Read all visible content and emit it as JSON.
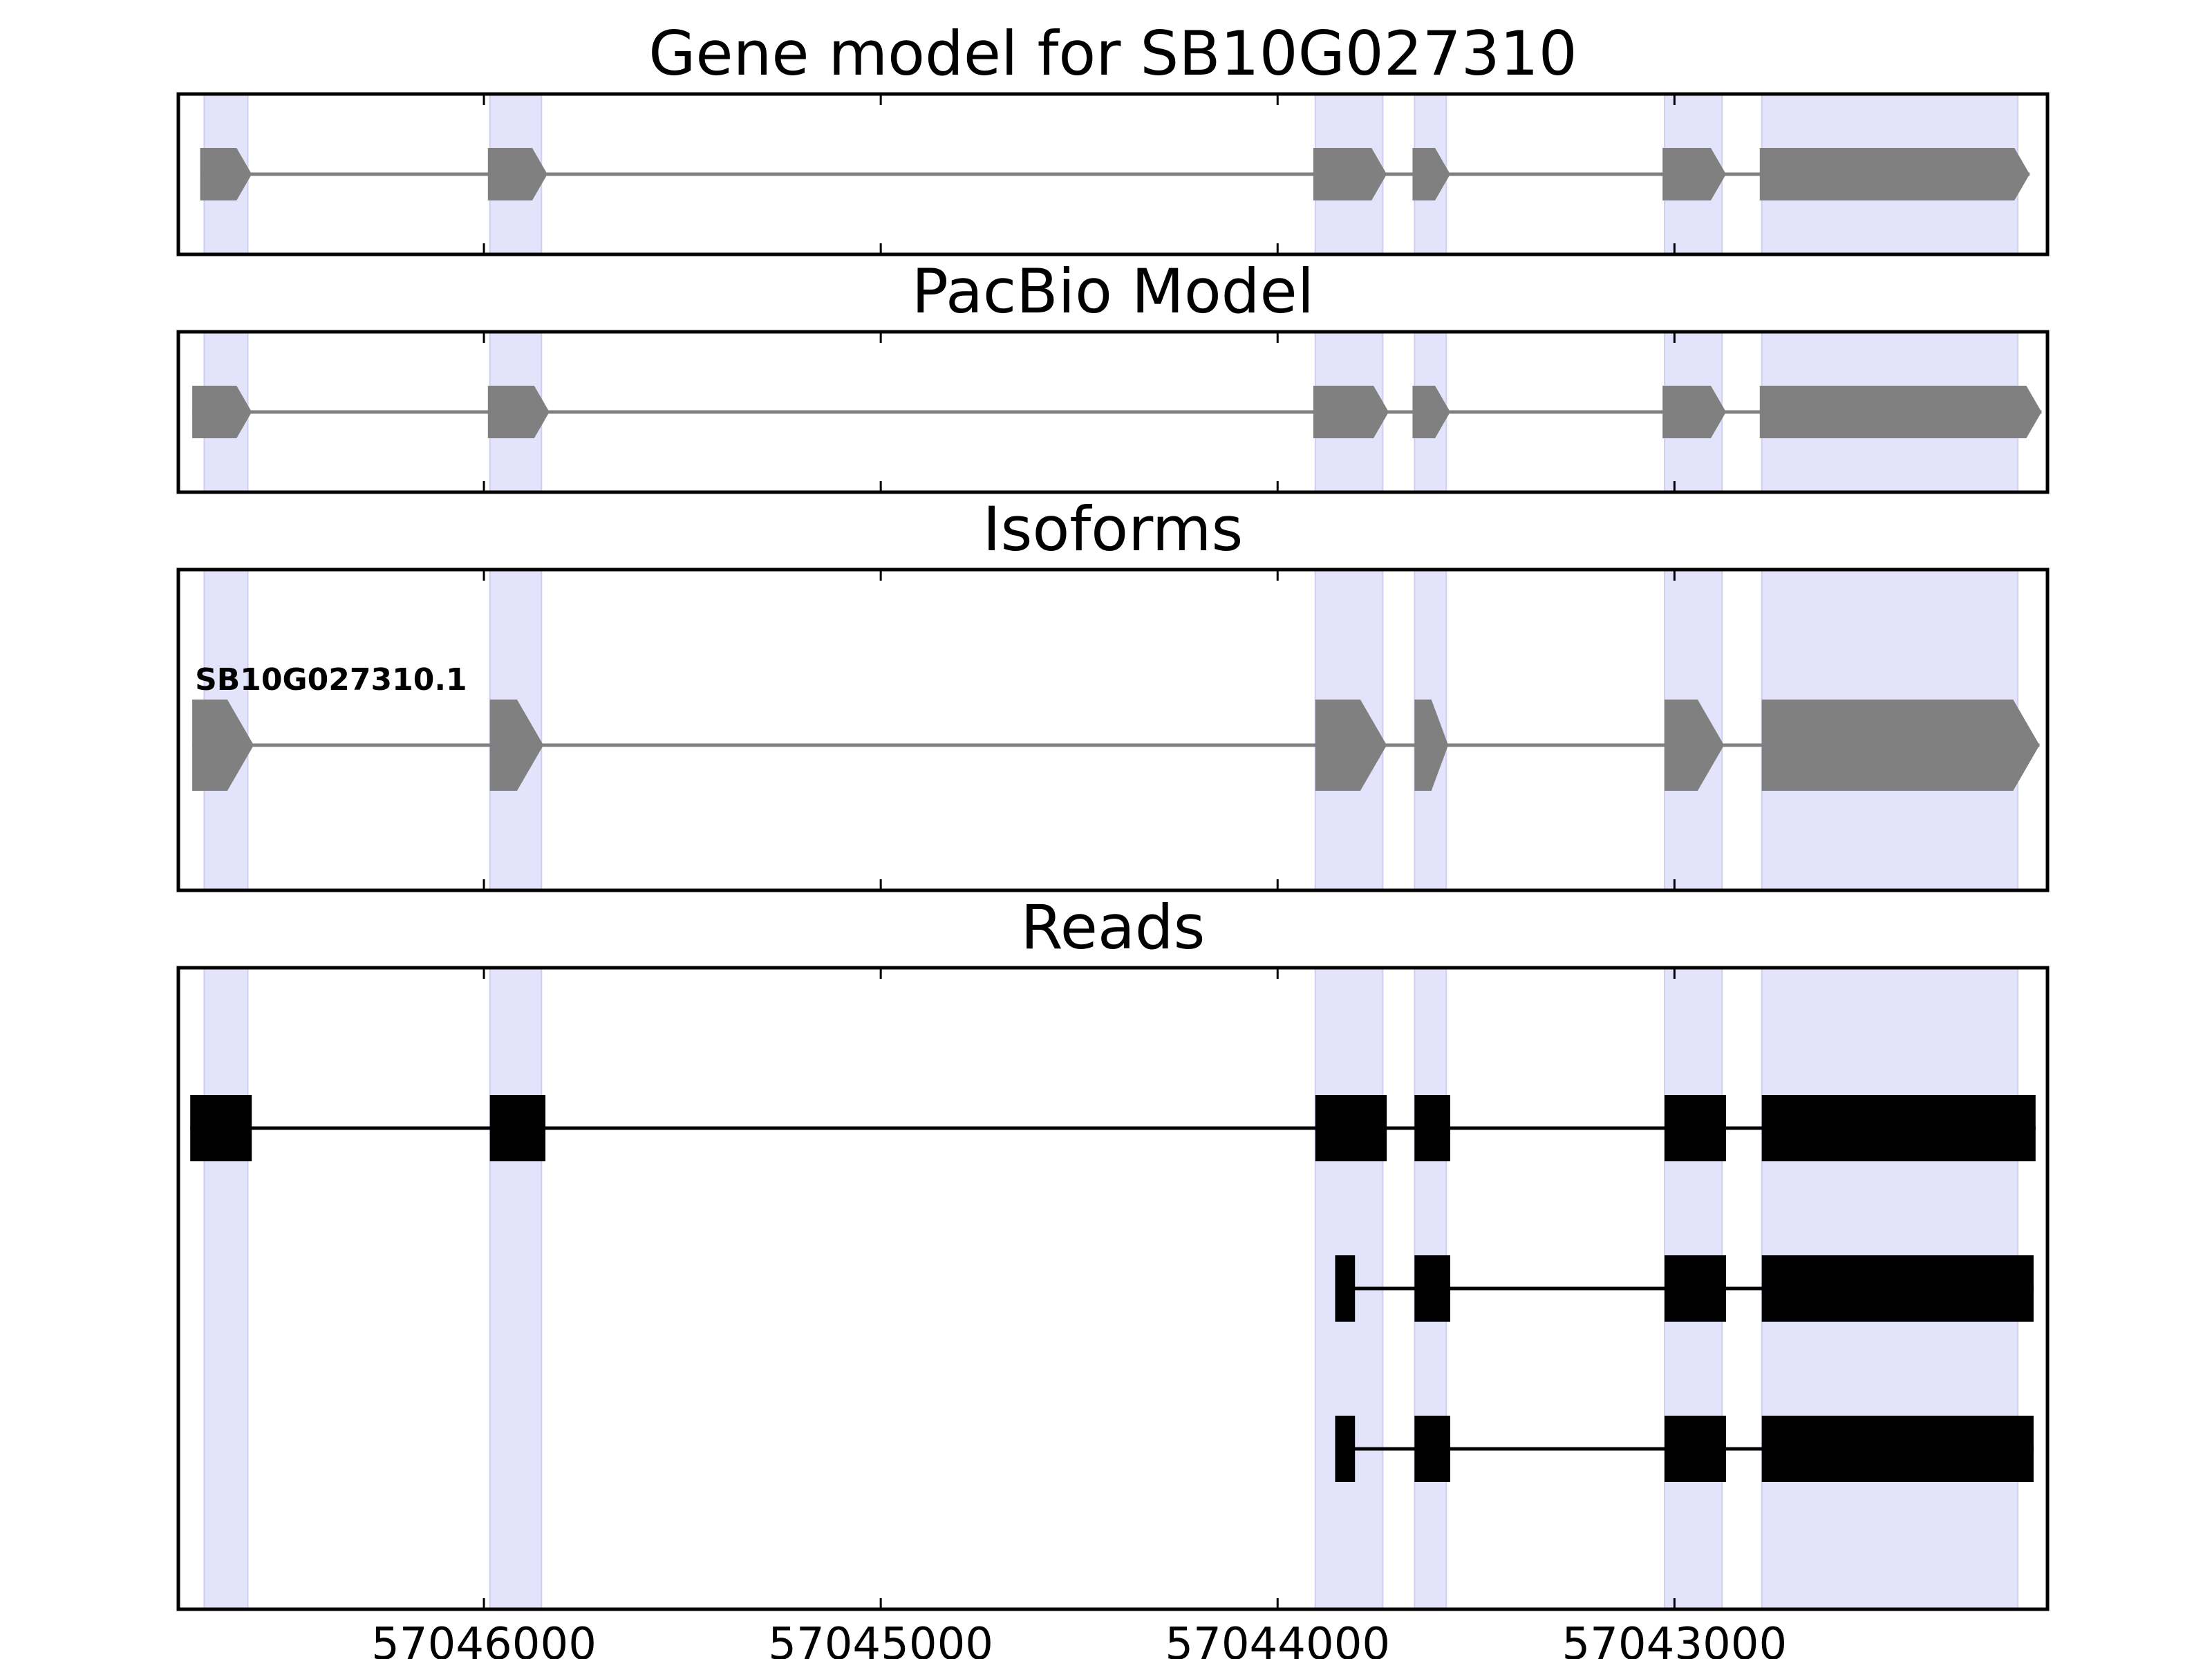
{
  "chart_data": {
    "type": "gene-model",
    "colors": {
      "exon_model": "#808080",
      "intron_model": "#808080",
      "read": "#000000",
      "exon_highlight": "#e3e3fb",
      "highlight_edge": "#cfcff0",
      "frame": "#000000"
    },
    "xaxis": {
      "xlim": [
        57046770,
        57042060
      ],
      "ticks": [
        57046000,
        57045000,
        57044000,
        57043000
      ],
      "tick_labels": [
        "57046000",
        "57045000",
        "57044000",
        "57043000"
      ]
    },
    "exon_highlights": [
      [
        57046705,
        57046595
      ],
      [
        57045985,
        57045855
      ],
      [
        57043905,
        57043735
      ],
      [
        57043655,
        57043575
      ],
      [
        57043025,
        57042880
      ],
      [
        57042780,
        57042135
      ]
    ],
    "panels": [
      {
        "title": "Gene model for SB10G027310",
        "style": "model",
        "tracks": [
          {
            "label": "",
            "exons": [
              [
                57046715,
                57046585
              ],
              [
                57045990,
                57045840
              ],
              [
                57043910,
                57043725
              ],
              [
                57043660,
                57043565
              ],
              [
                57043030,
                57042870
              ],
              [
                57042785,
                57042105
              ]
            ]
          }
        ]
      },
      {
        "title": "PacBio Model",
        "style": "model",
        "tracks": [
          {
            "label": "",
            "exons": [
              [
                57046735,
                57046585
              ],
              [
                57045990,
                57045835
              ],
              [
                57043910,
                57043720
              ],
              [
                57043660,
                57043565
              ],
              [
                57043030,
                57042870
              ],
              [
                57042785,
                57042075
              ]
            ]
          }
        ]
      },
      {
        "title": "Isoforms",
        "style": "model",
        "tracks": [
          {
            "label": "SB10G027310.1",
            "exons": [
              [
                57046735,
                57046580
              ],
              [
                57045985,
                57045850
              ],
              [
                57043905,
                57043725
              ],
              [
                57043655,
                57043570
              ],
              [
                57043025,
                57042875
              ],
              [
                57042780,
                57042080
              ]
            ]
          }
        ]
      },
      {
        "title": "Reads",
        "style": "reads",
        "tracks": [
          {
            "label": "",
            "exons": [
              [
                57046740,
                57046585
              ],
              [
                57045985,
                57045845
              ],
              [
                57043905,
                57043725
              ],
              [
                57043655,
                57043565
              ],
              [
                57043025,
                57042870
              ],
              [
                57042780,
                57042090
              ]
            ]
          },
          {
            "label": "",
            "exons": [
              [
                57043855,
                57043805
              ],
              [
                57043655,
                57043565
              ],
              [
                57043025,
                57042870
              ],
              [
                57042780,
                57042095
              ]
            ]
          },
          {
            "label": "",
            "exons": [
              [
                57043855,
                57043805
              ],
              [
                57043655,
                57043565
              ],
              [
                57043025,
                57042870
              ],
              [
                57042780,
                57042095
              ]
            ]
          }
        ]
      }
    ]
  }
}
